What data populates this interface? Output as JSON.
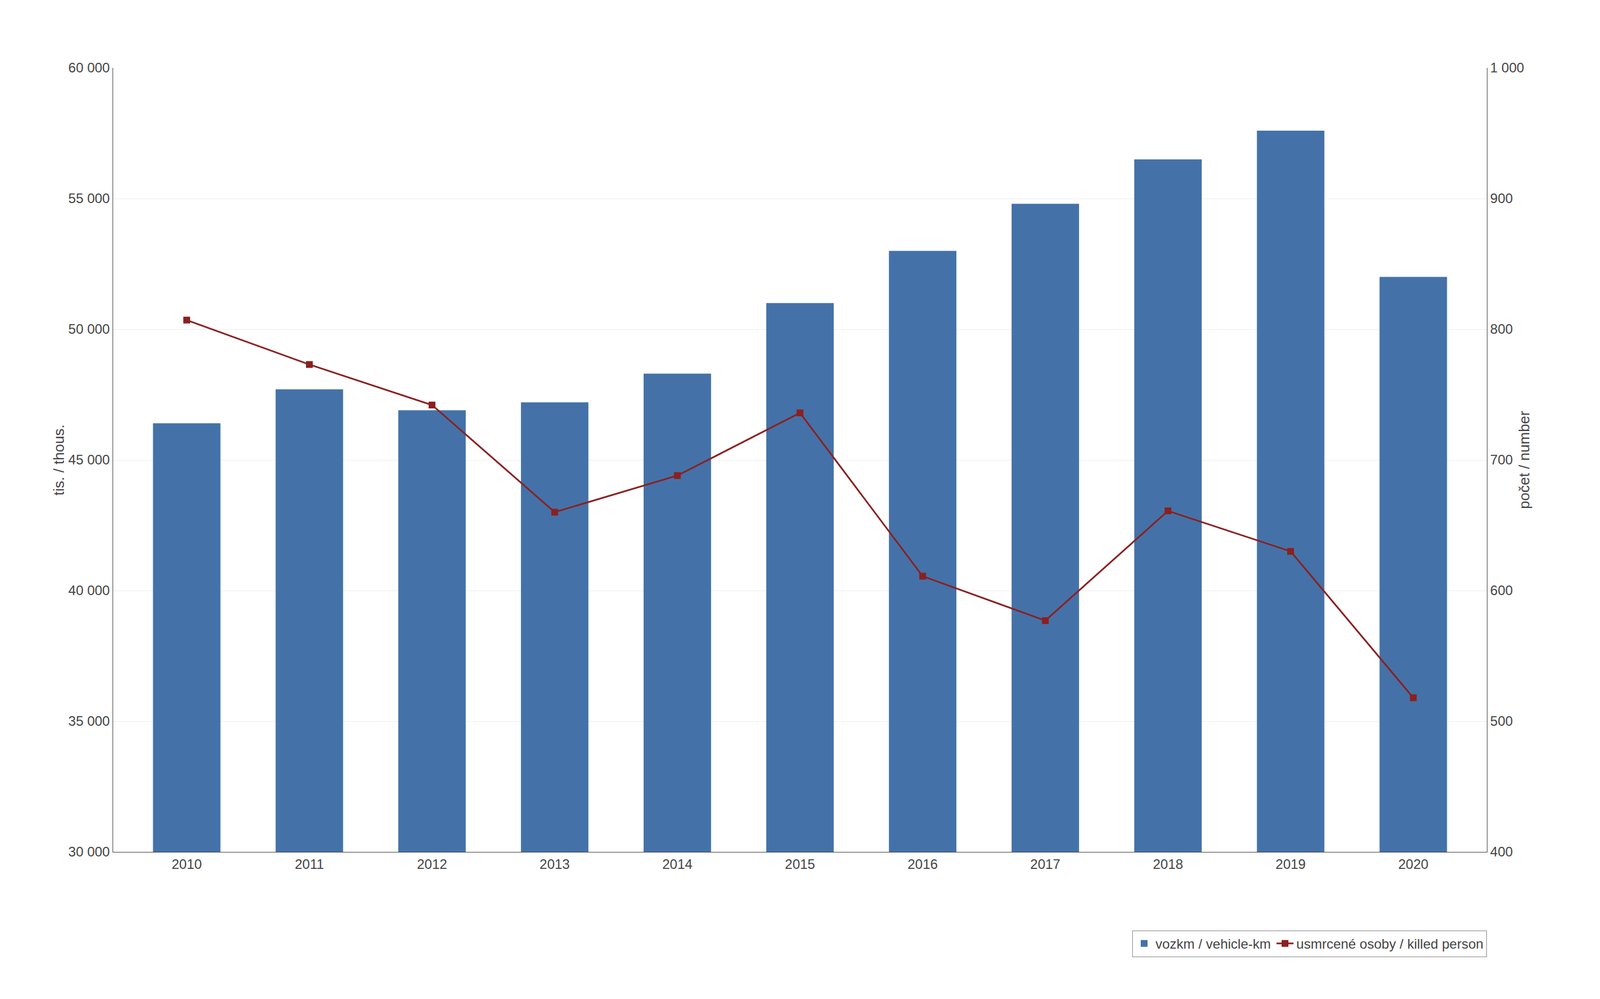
{
  "chart_data": {
    "type": "bar",
    "categories": [
      "2010",
      "2011",
      "2012",
      "2013",
      "2014",
      "2015",
      "2016",
      "2017",
      "2018",
      "2019",
      "2020"
    ],
    "series": [
      {
        "name": "vozkm / vehicle-km",
        "type": "bar",
        "color": "#4472a8",
        "values": [
          46400,
          47700,
          46900,
          47200,
          48300,
          51000,
          53000,
          54800,
          56500,
          57600,
          52000
        ]
      },
      {
        "name": "usmrcené osoby / killed person",
        "type": "line",
        "axis": "y2",
        "color": "#8b2020",
        "marker": "square",
        "values": [
          807,
          773,
          742,
          660,
          688,
          736,
          611,
          577,
          661,
          630,
          518
        ]
      }
    ],
    "ylabel": "tis. / thous.",
    "y2label": "počet / number",
    "ylim": [
      30000,
      60000
    ],
    "yticks": [
      {
        "value": 30000,
        "label": "30 000"
      },
      {
        "value": 35000,
        "label": "35 000"
      },
      {
        "value": 40000,
        "label": "40 000"
      },
      {
        "value": 45000,
        "label": "45 000"
      },
      {
        "value": 50000,
        "label": "50 000"
      },
      {
        "value": 55000,
        "label": "55 000"
      },
      {
        "value": 60000,
        "label": "60 000"
      }
    ],
    "y2lim": [
      400,
      1000
    ],
    "y2ticks": [
      400,
      500,
      600,
      700,
      800,
      900,
      {
        "value": 1000,
        "label": "1 000"
      }
    ],
    "grid": true,
    "legend": "lower right"
  }
}
